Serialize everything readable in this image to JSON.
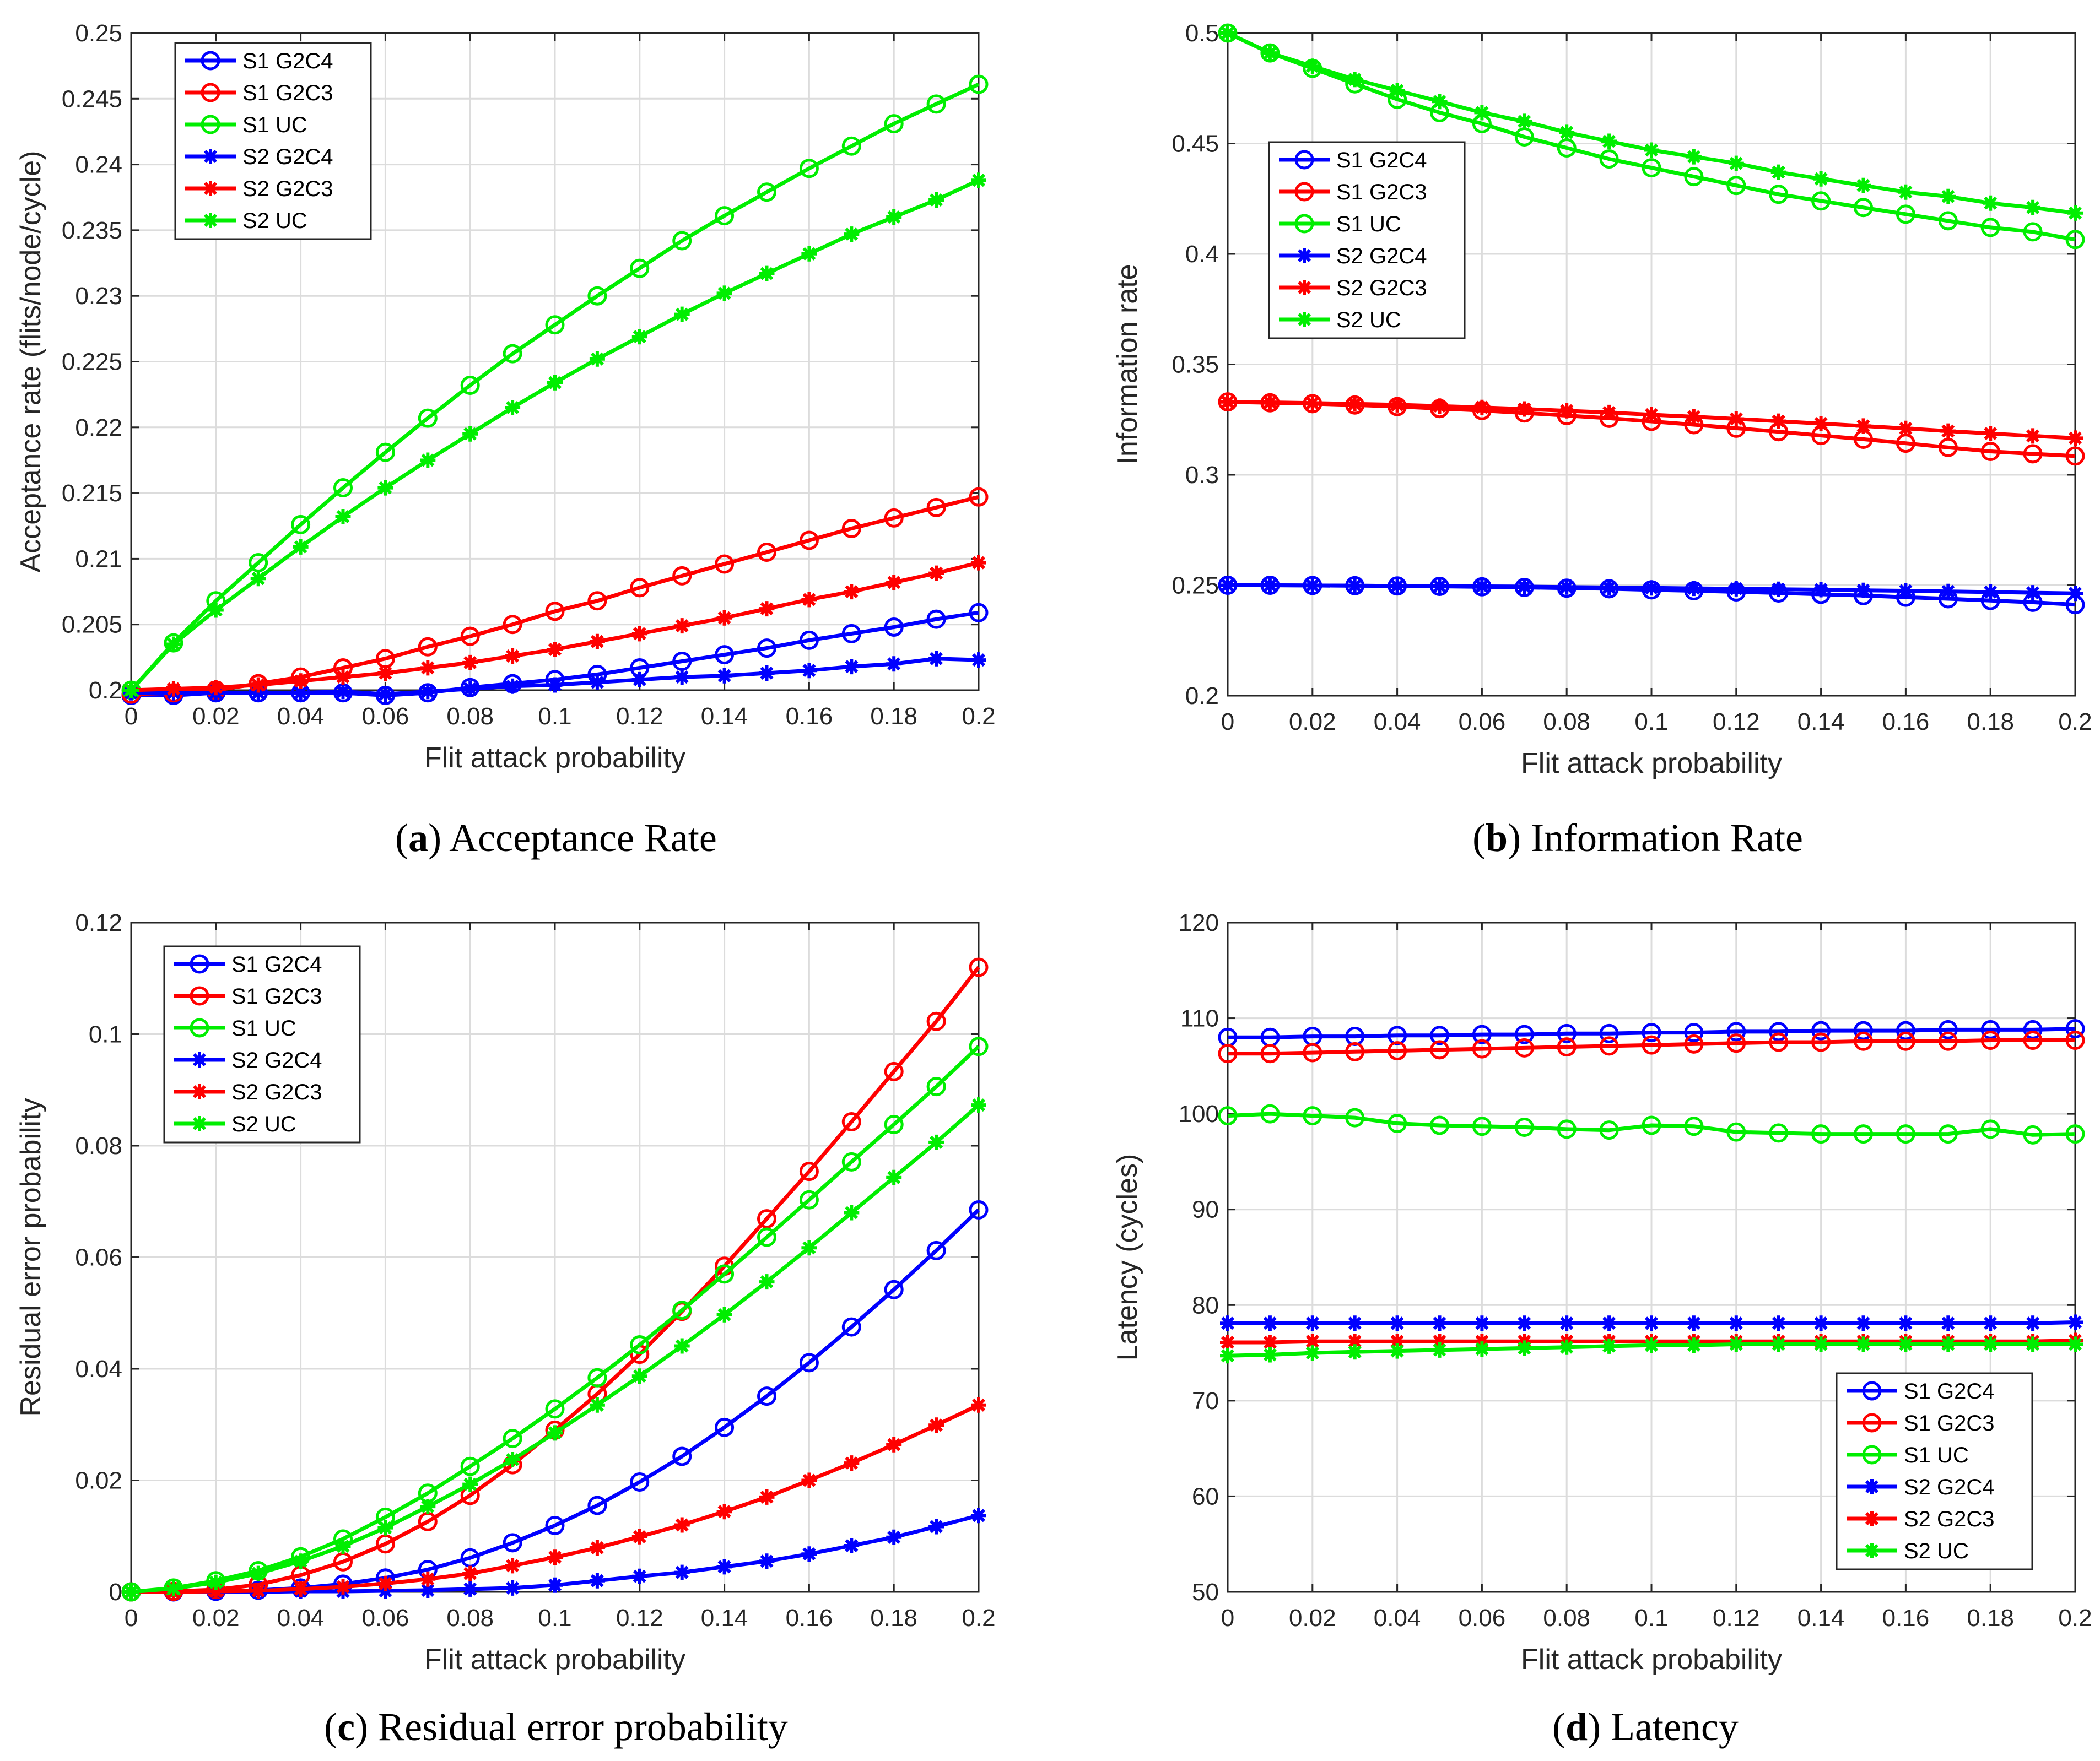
{
  "chart_data": [
    {
      "type": "line",
      "panel": "a",
      "caption_letter": "a",
      "caption_text": "Acceptance Rate",
      "xlabel": "Flit attack probability",
      "ylabel": "Acceptance rate (flits/node/cycle)",
      "xlim": [
        0,
        0.2
      ],
      "ylim": [
        0.2,
        0.25
      ],
      "xticks": [
        "0",
        "0.02",
        "0.04",
        "0.06",
        "0.08",
        "0.1",
        "0.12",
        "0.14",
        "0.16",
        "0.18",
        "0.2"
      ],
      "yticks": [
        "0.2",
        "0.205",
        "0.21",
        "0.215",
        "0.22",
        "0.225",
        "0.23",
        "0.235",
        "0.24",
        "0.245",
        "0.25"
      ],
      "grid": true,
      "legend_position": "top-left",
      "x": [
        0,
        0.01,
        0.02,
        0.03,
        0.04,
        0.05,
        0.06,
        0.07,
        0.08,
        0.09,
        0.1,
        0.11,
        0.12,
        0.13,
        0.14,
        0.15,
        0.16,
        0.17,
        0.18,
        0.19,
        0.2
      ],
      "series": [
        {
          "name": "S1 G2C4",
          "color": "#0000ff",
          "marker": "circle",
          "values": [
            0.1996,
            0.1996,
            0.1998,
            0.1998,
            0.1998,
            0.1998,
            0.1996,
            0.1998,
            0.2002,
            0.2005,
            0.2008,
            0.2012,
            0.2017,
            0.2022,
            0.2027,
            0.2032,
            0.2038,
            0.2043,
            0.2048,
            0.2054,
            0.2059
          ]
        },
        {
          "name": "S1 G2C3",
          "color": "#ff0000",
          "marker": "circle",
          "values": [
            0.1997,
            0.1998,
            0.2,
            0.2005,
            0.201,
            0.2017,
            0.2024,
            0.2033,
            0.2041,
            0.205,
            0.206,
            0.2068,
            0.2078,
            0.2087,
            0.2096,
            0.2105,
            0.2114,
            0.2123,
            0.2131,
            0.2139,
            0.2147
          ]
        },
        {
          "name": "S1 UC",
          "color": "#00ee00",
          "marker": "circle",
          "values": [
            0.2,
            0.2036,
            0.2068,
            0.2097,
            0.2126,
            0.2154,
            0.2181,
            0.2207,
            0.2232,
            0.2256,
            0.2278,
            0.23,
            0.2321,
            0.2342,
            0.2361,
            0.2379,
            0.2397,
            0.2414,
            0.2431,
            0.2446,
            0.2461
          ]
        },
        {
          "name": "S2 G2C4",
          "color": "#0000ff",
          "marker": "star",
          "values": [
            0.1998,
            0.1998,
            0.1998,
            0.1998,
            0.1998,
            0.1999,
            0.1997,
            0.1999,
            0.2001,
            0.2003,
            0.2004,
            0.2006,
            0.2008,
            0.201,
            0.2011,
            0.2013,
            0.2015,
            0.2018,
            0.202,
            0.2024,
            0.2023
          ]
        },
        {
          "name": "S2 G2C3",
          "color": "#ff0000",
          "marker": "star",
          "values": [
            0.2,
            0.2001,
            0.2002,
            0.2004,
            0.2007,
            0.201,
            0.2013,
            0.2017,
            0.2021,
            0.2026,
            0.2031,
            0.2037,
            0.2043,
            0.2049,
            0.2055,
            0.2062,
            0.2069,
            0.2075,
            0.2082,
            0.2089,
            0.2097
          ]
        },
        {
          "name": "S2 UC",
          "color": "#00ee00",
          "marker": "star",
          "values": [
            0.2,
            0.2035,
            0.2061,
            0.2085,
            0.2109,
            0.2132,
            0.2154,
            0.2175,
            0.2195,
            0.2215,
            0.2234,
            0.2252,
            0.2269,
            0.2286,
            0.2302,
            0.2317,
            0.2332,
            0.2347,
            0.236,
            0.2373,
            0.2388
          ]
        }
      ]
    },
    {
      "type": "line",
      "panel": "b",
      "caption_letter": "b",
      "caption_text": "Information Rate",
      "xlabel": "Flit attack probability",
      "ylabel": "Information rate",
      "xlim": [
        0,
        0.2
      ],
      "ylim": [
        0.2,
        0.5
      ],
      "xticks": [
        "0",
        "0.02",
        "0.04",
        "0.06",
        "0.08",
        "0.1",
        "0.12",
        "0.14",
        "0.16",
        "0.18",
        "0.2"
      ],
      "yticks": [
        "0.2",
        "0.25",
        "0.3",
        "0.35",
        "0.4",
        "0.45",
        "0.5"
      ],
      "grid": true,
      "legend_position": "middle-left",
      "x": [
        0,
        0.01,
        0.02,
        0.03,
        0.04,
        0.05,
        0.06,
        0.07,
        0.08,
        0.09,
        0.1,
        0.11,
        0.12,
        0.13,
        0.14,
        0.15,
        0.16,
        0.17,
        0.18,
        0.19,
        0.2
      ],
      "series": [
        {
          "name": "S1 G2C4",
          "color": "#0000ff",
          "marker": "circle",
          "values": [
            0.25,
            0.25,
            0.2499,
            0.2498,
            0.2497,
            0.2495,
            0.2493,
            0.249,
            0.2487,
            0.2484,
            0.2479,
            0.2475,
            0.247,
            0.2465,
            0.2459,
            0.2453,
            0.2446,
            0.2439,
            0.2431,
            0.2423,
            0.2412
          ]
        },
        {
          "name": "S1 G2C3",
          "color": "#ff0000",
          "marker": "circle",
          "values": [
            0.333,
            0.3326,
            0.3322,
            0.3316,
            0.3309,
            0.33,
            0.3291,
            0.328,
            0.3268,
            0.3256,
            0.3242,
            0.3227,
            0.3211,
            0.3195,
            0.3178,
            0.3161,
            0.3143,
            0.3124,
            0.3106,
            0.3095,
            0.3085
          ]
        },
        {
          "name": "S1 UC",
          "color": "#00ee00",
          "marker": "circle",
          "values": [
            0.5,
            0.491,
            0.484,
            0.477,
            0.47,
            0.464,
            0.459,
            0.453,
            0.448,
            0.443,
            0.439,
            0.435,
            0.431,
            0.427,
            0.424,
            0.421,
            0.418,
            0.415,
            0.412,
            0.41,
            0.4065
          ]
        },
        {
          "name": "S2 G2C4",
          "color": "#0000ff",
          "marker": "star",
          "values": [
            0.25,
            0.25,
            0.2499,
            0.2498,
            0.2497,
            0.2496,
            0.2495,
            0.2494,
            0.2492,
            0.249,
            0.2488,
            0.2486,
            0.2484,
            0.2482,
            0.248,
            0.2477,
            0.2475,
            0.2472,
            0.2469,
            0.2466,
            0.2463
          ]
        },
        {
          "name": "S2 G2C3",
          "color": "#ff0000",
          "marker": "star",
          "values": [
            0.333,
            0.3328,
            0.3325,
            0.3321,
            0.3317,
            0.3311,
            0.3305,
            0.3298,
            0.329,
            0.3282,
            0.3272,
            0.3263,
            0.3253,
            0.3243,
            0.3232,
            0.3221,
            0.321,
            0.3198,
            0.3187,
            0.3176,
            0.3166
          ]
        },
        {
          "name": "S2 UC",
          "color": "#00ee00",
          "marker": "star",
          "values": [
            0.5,
            0.491,
            0.485,
            0.479,
            0.474,
            0.469,
            0.464,
            0.46,
            0.455,
            0.451,
            0.447,
            0.444,
            0.441,
            0.437,
            0.434,
            0.431,
            0.428,
            0.426,
            0.423,
            0.421,
            0.4185
          ]
        }
      ]
    },
    {
      "type": "line",
      "panel": "c",
      "caption_letter": "c",
      "caption_text": "Residual error probability",
      "xlabel": "Flit attack probability",
      "ylabel": "Residual error probability",
      "xlim": [
        0,
        0.2
      ],
      "ylim": [
        0,
        0.12
      ],
      "xticks": [
        "0",
        "0.02",
        "0.04",
        "0.06",
        "0.08",
        "0.1",
        "0.12",
        "0.14",
        "0.16",
        "0.18",
        "0.2"
      ],
      "yticks": [
        "0",
        "0.02",
        "0.04",
        "0.06",
        "0.08",
        "0.1",
        "0.12"
      ],
      "grid": true,
      "legend_position": "top-left",
      "x": [
        0,
        0.01,
        0.02,
        0.03,
        0.04,
        0.05,
        0.06,
        0.07,
        0.08,
        0.09,
        0.1,
        0.11,
        0.12,
        0.13,
        0.14,
        0.15,
        0.16,
        0.17,
        0.18,
        0.19,
        0.2
      ],
      "series": [
        {
          "name": "S1 G2C4",
          "color": "#0000ff",
          "marker": "circle",
          "values": [
            0.0,
            0.0,
            0.0001,
            0.0003,
            0.0007,
            0.0014,
            0.0025,
            0.004,
            0.0061,
            0.0088,
            0.0119,
            0.0155,
            0.0197,
            0.0243,
            0.0295,
            0.0351,
            0.0411,
            0.0475,
            0.0542,
            0.0612,
            0.0685
          ]
        },
        {
          "name": "S1 G2C3",
          "color": "#ff0000",
          "marker": "circle",
          "values": [
            0.0,
            0.0001,
            0.0004,
            0.0013,
            0.003,
            0.0054,
            0.0086,
            0.0126,
            0.0173,
            0.0228,
            0.029,
            0.0355,
            0.0426,
            0.0503,
            0.0584,
            0.0669,
            0.0754,
            0.0843,
            0.0933,
            0.1023,
            0.112
          ]
        },
        {
          "name": "S1 UC",
          "color": "#00ee00",
          "marker": "circle",
          "values": [
            0.0,
            0.0007,
            0.002,
            0.0038,
            0.0063,
            0.0095,
            0.0134,
            0.0177,
            0.0225,
            0.0275,
            0.0328,
            0.0384,
            0.0443,
            0.0505,
            0.057,
            0.0636,
            0.0703,
            0.0771,
            0.0838,
            0.0906,
            0.0978
          ]
        },
        {
          "name": "S2 G2C4",
          "color": "#0000ff",
          "marker": "star",
          "values": [
            0.0,
            0.0,
            0.0,
            0.0,
            0.0001,
            0.0001,
            0.0002,
            0.0003,
            0.0005,
            0.0007,
            0.0012,
            0.002,
            0.0028,
            0.0035,
            0.0045,
            0.0055,
            0.0068,
            0.0083,
            0.0098,
            0.0117,
            0.0137
          ]
        },
        {
          "name": "S2 G2C3",
          "color": "#ff0000",
          "marker": "star",
          "values": [
            0.0,
            0.0,
            0.0001,
            0.0002,
            0.0005,
            0.0009,
            0.0015,
            0.0023,
            0.0033,
            0.0047,
            0.0062,
            0.0079,
            0.0099,
            0.012,
            0.0144,
            0.017,
            0.02,
            0.0231,
            0.0264,
            0.0299,
            0.0335
          ]
        },
        {
          "name": "S2 UC",
          "color": "#00ee00",
          "marker": "star",
          "values": [
            0.0,
            0.0006,
            0.0017,
            0.0033,
            0.0055,
            0.0082,
            0.0115,
            0.0153,
            0.0193,
            0.0237,
            0.0285,
            0.0335,
            0.0387,
            0.0441,
            0.0497,
            0.0556,
            0.0617,
            0.068,
            0.0743,
            0.0806,
            0.0873
          ]
        }
      ]
    },
    {
      "type": "line",
      "panel": "d",
      "caption_letter": "d",
      "caption_text": "Latency",
      "xlabel": "Flit attack probability",
      "ylabel": "Latency (cycles)",
      "xlim": [
        0,
        0.2
      ],
      "ylim": [
        50,
        120
      ],
      "xticks": [
        "0",
        "0.02",
        "0.04",
        "0.06",
        "0.08",
        "0.1",
        "0.12",
        "0.14",
        "0.16",
        "0.18",
        "0.2"
      ],
      "yticks": [
        "50",
        "60",
        "70",
        "80",
        "90",
        "100",
        "110",
        "120"
      ],
      "grid": true,
      "legend_position": "bottom-right",
      "x": [
        0,
        0.01,
        0.02,
        0.03,
        0.04,
        0.05,
        0.06,
        0.07,
        0.08,
        0.09,
        0.1,
        0.11,
        0.12,
        0.13,
        0.14,
        0.15,
        0.16,
        0.17,
        0.18,
        0.19,
        0.2
      ],
      "series": [
        {
          "name": "S1 G2C4",
          "color": "#0000ff",
          "marker": "circle",
          "values": [
            108.0,
            108.0,
            108.1,
            108.1,
            108.2,
            108.2,
            108.3,
            108.3,
            108.4,
            108.4,
            108.5,
            108.5,
            108.6,
            108.6,
            108.7,
            108.7,
            108.7,
            108.8,
            108.8,
            108.8,
            108.9
          ]
        },
        {
          "name": "S1 G2C3",
          "color": "#ff0000",
          "marker": "circle",
          "values": [
            106.3,
            106.3,
            106.4,
            106.5,
            106.6,
            106.7,
            106.8,
            106.9,
            107.0,
            107.1,
            107.2,
            107.3,
            107.4,
            107.5,
            107.5,
            107.6,
            107.6,
            107.6,
            107.7,
            107.7,
            107.7
          ]
        },
        {
          "name": "S1 UC",
          "color": "#00ee00",
          "marker": "circle",
          "values": [
            99.8,
            100.0,
            99.8,
            99.6,
            99.0,
            98.8,
            98.7,
            98.6,
            98.4,
            98.3,
            98.8,
            98.7,
            98.1,
            98.0,
            97.9,
            97.9,
            97.9,
            97.9,
            98.4,
            97.8,
            97.9
          ]
        },
        {
          "name": "S2 G2C4",
          "color": "#0000ff",
          "marker": "star",
          "values": [
            78.1,
            78.1,
            78.1,
            78.1,
            78.1,
            78.1,
            78.1,
            78.1,
            78.1,
            78.1,
            78.1,
            78.1,
            78.1,
            78.1,
            78.1,
            78.1,
            78.1,
            78.1,
            78.1,
            78.1,
            78.2
          ]
        },
        {
          "name": "S2 G2C3",
          "color": "#ff0000",
          "marker": "star",
          "values": [
            76.1,
            76.1,
            76.2,
            76.2,
            76.2,
            76.2,
            76.2,
            76.2,
            76.2,
            76.2,
            76.2,
            76.2,
            76.2,
            76.2,
            76.2,
            76.2,
            76.2,
            76.2,
            76.2,
            76.2,
            76.3
          ]
        },
        {
          "name": "S2 UC",
          "color": "#00ee00",
          "marker": "star",
          "values": [
            74.7,
            74.8,
            75.0,
            75.1,
            75.2,
            75.3,
            75.4,
            75.5,
            75.6,
            75.7,
            75.8,
            75.8,
            75.9,
            75.9,
            75.9,
            75.9,
            75.9,
            75.9,
            75.9,
            75.9,
            75.9
          ]
        }
      ]
    }
  ]
}
